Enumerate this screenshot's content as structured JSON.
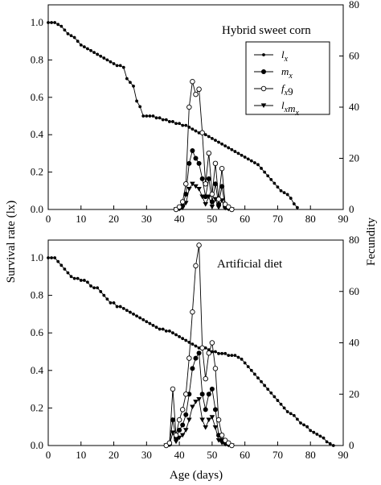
{
  "chart_data": [
    {
      "type": "line",
      "title": "Hybrid sweet corn",
      "xlabel": "Age (days)",
      "ylabel": "Survival rate (lx)",
      "ylabel_right": "Fecundity",
      "xlim": [
        0,
        90
      ],
      "ylim": [
        0,
        1.0
      ],
      "ylim_right": [
        0,
        80
      ],
      "xticks": [
        "0",
        "10",
        "20",
        "30",
        "40",
        "50",
        "60",
        "70",
        "80",
        "90"
      ],
      "yticks": [
        "0.0",
        "0.2",
        "0.4",
        "0.6",
        "0.8",
        "1.0"
      ],
      "yticks_right": [
        "0",
        "20",
        "40",
        "60",
        "80"
      ],
      "legend_placement": "top-right",
      "legend": [
        {
          "label": "l",
          "sub": "x",
          "marker": "small-filled"
        },
        {
          "label": "m",
          "sub": "x",
          "marker": "filled"
        },
        {
          "label": "f",
          "sub": "x",
          "suffix": "9",
          "marker": "open"
        },
        {
          "label": "l",
          "sub": "x",
          "label2": "m",
          "sub2": "x",
          "marker": "triangle-down"
        }
      ],
      "series": [
        {
          "name": "lx",
          "axis": "left",
          "marker": "small-filled",
          "x": [
            0,
            1,
            2,
            3,
            4,
            5,
            6,
            7,
            8,
            9,
            10,
            11,
            12,
            13,
            14,
            15,
            16,
            17,
            18,
            19,
            20,
            21,
            22,
            23,
            24,
            25,
            26,
            27,
            28,
            29,
            30,
            31,
            32,
            33,
            34,
            35,
            36,
            37,
            38,
            39,
            40,
            41,
            42,
            43,
            44,
            45,
            46,
            47,
            48,
            49,
            50,
            51,
            52,
            53,
            54,
            55,
            56,
            57,
            58,
            59,
            60,
            61,
            62,
            63,
            64,
            65,
            66,
            67,
            68,
            69,
            70,
            71,
            72,
            73,
            74,
            75,
            76
          ],
          "y": [
            1.0,
            1.0,
            1.0,
            0.99,
            0.98,
            0.96,
            0.94,
            0.93,
            0.92,
            0.9,
            0.88,
            0.87,
            0.86,
            0.85,
            0.84,
            0.83,
            0.82,
            0.81,
            0.8,
            0.79,
            0.78,
            0.77,
            0.77,
            0.76,
            0.7,
            0.68,
            0.66,
            0.58,
            0.55,
            0.5,
            0.5,
            0.5,
            0.5,
            0.49,
            0.49,
            0.48,
            0.48,
            0.47,
            0.47,
            0.46,
            0.46,
            0.45,
            0.45,
            0.44,
            0.43,
            0.42,
            0.41,
            0.41,
            0.4,
            0.39,
            0.38,
            0.37,
            0.36,
            0.35,
            0.34,
            0.33,
            0.32,
            0.31,
            0.3,
            0.29,
            0.28,
            0.27,
            0.26,
            0.25,
            0.24,
            0.22,
            0.2,
            0.18,
            0.16,
            0.14,
            0.12,
            0.1,
            0.09,
            0.08,
            0.06,
            0.03,
            0.01
          ]
        },
        {
          "name": "mx",
          "axis": "right",
          "marker": "filled",
          "x": [
            39,
            40,
            41,
            42,
            43,
            44,
            45,
            46,
            47,
            48,
            49,
            50,
            51,
            52,
            53,
            54,
            55,
            56
          ],
          "y": [
            0,
            0.5,
            1.5,
            6,
            18,
            23,
            20,
            18,
            12,
            5,
            12,
            3,
            10,
            2,
            9,
            1,
            0.5,
            0
          ]
        },
        {
          "name": "fx9",
          "axis": "right",
          "marker": "open",
          "x": [
            39,
            40,
            41,
            42,
            43,
            44,
            45,
            46,
            47,
            48,
            49,
            50,
            51,
            52,
            53,
            54,
            55,
            56
          ],
          "y": [
            0,
            1,
            3,
            10,
            40,
            50,
            45,
            47,
            30,
            10,
            22,
            6,
            18,
            4,
            16,
            2,
            1,
            0
          ]
        },
        {
          "name": "lxmx",
          "axis": "right",
          "marker": "triangle-down",
          "x": [
            39,
            40,
            41,
            42,
            43,
            44,
            45,
            46,
            47,
            48,
            49,
            50,
            51,
            52,
            53,
            54,
            55,
            56
          ],
          "y": [
            0,
            0.2,
            0.6,
            2.5,
            8,
            10,
            9,
            8,
            5,
            2,
            5,
            1,
            4,
            0.8,
            3.5,
            0.5,
            0.2,
            0
          ]
        }
      ]
    },
    {
      "type": "line",
      "title": "Artificial diet",
      "xlabel": "Age (days)",
      "ylabel": "Survival rate (lx)",
      "ylabel_right": "Fecundity",
      "xlim": [
        0,
        90
      ],
      "ylim": [
        0,
        1.0
      ],
      "ylim_right": [
        0,
        80
      ],
      "xticks": [
        "0",
        "10",
        "20",
        "30",
        "40",
        "50",
        "60",
        "70",
        "80",
        "90"
      ],
      "yticks": [
        "0.0",
        "0.2",
        "0.4",
        "0.6",
        "0.8",
        "1.0"
      ],
      "yticks_right": [
        "0",
        "20",
        "40",
        "60",
        "80"
      ],
      "series": [
        {
          "name": "lx",
          "axis": "left",
          "marker": "small-filled",
          "x": [
            0,
            1,
            2,
            3,
            4,
            5,
            6,
            7,
            8,
            9,
            10,
            11,
            12,
            13,
            14,
            15,
            16,
            17,
            18,
            19,
            20,
            21,
            22,
            23,
            24,
            25,
            26,
            27,
            28,
            29,
            30,
            31,
            32,
            33,
            34,
            35,
            36,
            37,
            38,
            39,
            40,
            41,
            42,
            43,
            44,
            45,
            46,
            47,
            48,
            49,
            50,
            51,
            52,
            53,
            54,
            55,
            56,
            57,
            58,
            59,
            60,
            61,
            62,
            63,
            64,
            65,
            66,
            67,
            68,
            69,
            70,
            71,
            72,
            73,
            74,
            75,
            76,
            77,
            78,
            79,
            80,
            81,
            82,
            83,
            84,
            85,
            86,
            87
          ],
          "y": [
            1.0,
            1.0,
            1.0,
            0.98,
            0.96,
            0.94,
            0.92,
            0.9,
            0.89,
            0.89,
            0.88,
            0.88,
            0.87,
            0.85,
            0.84,
            0.84,
            0.82,
            0.8,
            0.78,
            0.76,
            0.76,
            0.74,
            0.74,
            0.73,
            0.72,
            0.71,
            0.7,
            0.69,
            0.68,
            0.67,
            0.66,
            0.65,
            0.64,
            0.63,
            0.62,
            0.62,
            0.61,
            0.61,
            0.6,
            0.59,
            0.58,
            0.57,
            0.56,
            0.55,
            0.54,
            0.53,
            0.52,
            0.52,
            0.52,
            0.51,
            0.5,
            0.5,
            0.49,
            0.49,
            0.49,
            0.48,
            0.48,
            0.48,
            0.47,
            0.46,
            0.44,
            0.42,
            0.4,
            0.38,
            0.36,
            0.34,
            0.32,
            0.3,
            0.28,
            0.26,
            0.24,
            0.22,
            0.2,
            0.18,
            0.17,
            0.16,
            0.14,
            0.12,
            0.11,
            0.1,
            0.08,
            0.07,
            0.06,
            0.05,
            0.04,
            0.02,
            0.01,
            0.0
          ]
        },
        {
          "name": "mx",
          "axis": "right",
          "marker": "filled",
          "x": [
            36,
            37,
            38,
            39,
            40,
            41,
            42,
            43,
            44,
            45,
            46,
            47,
            48,
            49,
            50,
            51,
            52,
            53,
            54,
            55,
            56
          ],
          "y": [
            0,
            0.5,
            10,
            3,
            6,
            8,
            12,
            20,
            30,
            34,
            36,
            20,
            14,
            20,
            22,
            14,
            4,
            2,
            1,
            0.5,
            0
          ]
        },
        {
          "name": "fx9",
          "axis": "right",
          "marker": "open",
          "x": [
            36,
            37,
            38,
            39,
            40,
            41,
            42,
            43,
            44,
            45,
            46,
            47,
            48,
            49,
            50,
            51,
            52,
            53,
            54,
            55,
            56
          ],
          "y": [
            0,
            1,
            22,
            4,
            10,
            14,
            20,
            34,
            52,
            70,
            78,
            38,
            26,
            36,
            40,
            30,
            10,
            4,
            2,
            1,
            0
          ]
        },
        {
          "name": "lxmx",
          "axis": "right",
          "marker": "triangle-down",
          "x": [
            36,
            37,
            38,
            39,
            40,
            41,
            42,
            43,
            44,
            45,
            46,
            47,
            48,
            49,
            50,
            51,
            52,
            53,
            54,
            55,
            56
          ],
          "y": [
            0,
            0.3,
            5,
            1.5,
            3,
            4,
            6,
            10,
            15,
            17,
            18,
            10,
            7,
            10,
            11,
            7,
            2,
            1,
            0.5,
            0.2,
            0
          ]
        }
      ]
    }
  ],
  "shared": {
    "ylabel_left": "Survival rate (lx)",
    "ylabel_right": "Fecundity",
    "xlabel": "Age (days)"
  }
}
